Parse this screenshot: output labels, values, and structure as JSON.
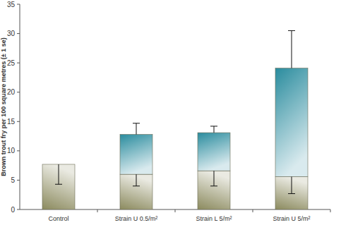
{
  "chart_data": {
    "type": "bar",
    "stacked": true,
    "y_label": "Brown trout fry per 100 square metres (± 1 se)",
    "categories": [
      "Control",
      "Strain U 0.5/m²",
      "Strain L 5/m²",
      "Strain U 5/m²"
    ],
    "series": [
      {
        "color": "#8b8a5e",
        "values": [
          7.7,
          6.0,
          6.6,
          5.6
        ],
        "error": [
          3.4,
          2.0,
          2.6,
          2.9
        ]
      },
      {
        "color": "#2a8c9e",
        "values": [
          null,
          6.8,
          6.5,
          18.5
        ],
        "error": [
          null,
          1.9,
          1.1,
          6.4
        ]
      }
    ],
    "ylim": [
      0,
      35
    ],
    "yticks": [
      0,
      5,
      10,
      15,
      20,
      25,
      30,
      35
    ],
    "grid": false
  }
}
